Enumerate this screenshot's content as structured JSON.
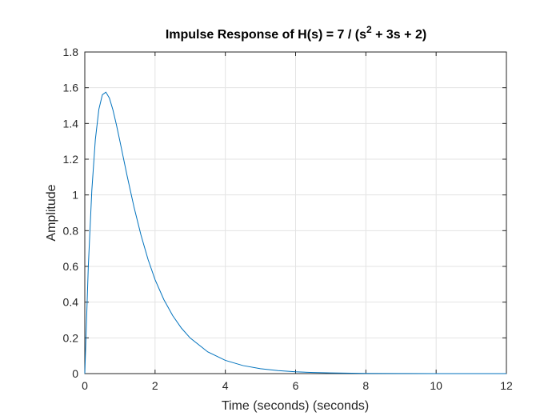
{
  "chart_data": {
    "type": "line",
    "title": {
      "prefix": "Impulse Response of H(s) = 7 / (s",
      "superscript": "2",
      "suffix": " + 3s + 2)"
    },
    "xlabel": "Time (seconds) (seconds)",
    "ylabel": "Amplitude",
    "xlim": [
      0,
      12
    ],
    "ylim": [
      0,
      1.8
    ],
    "xticks": [
      0,
      2,
      4,
      6,
      8,
      10,
      12
    ],
    "yticks": [
      0,
      0.2,
      0.4,
      0.6,
      0.8,
      1,
      1.2,
      1.4,
      1.6,
      1.8
    ],
    "grid": true,
    "series": [
      {
        "color": "#0072BD",
        "x": [
          0,
          0.1,
          0.2,
          0.3,
          0.4,
          0.5,
          0.6,
          0.7,
          0.8,
          0.9,
          1.0,
          1.2,
          1.4,
          1.6,
          1.8,
          2.0,
          2.25,
          2.5,
          2.75,
          3.0,
          3.5,
          4.0,
          4.5,
          5.0,
          5.5,
          6.0,
          6.5,
          7.0,
          8.0,
          9.0,
          10.0,
          11.0,
          12.0
        ],
        "y": [
          0,
          0.6009,
          1.0255,
          1.3091,
          1.4791,
          1.5607,
          1.5753,
          1.5421,
          1.4767,
          1.3925,
          1.3004,
          1.111,
          0.9326,
          0.7745,
          0.6392,
          0.5258,
          0.4143,
          0.3251,
          0.2546,
          0.199,
          0.1215,
          0.0741,
          0.0451,
          0.0274,
          0.0167,
          0.0101,
          0.0062,
          0.0037,
          0.0014,
          0.0005,
          0.0002,
          0.0001,
          0.0
        ]
      }
    ]
  }
}
